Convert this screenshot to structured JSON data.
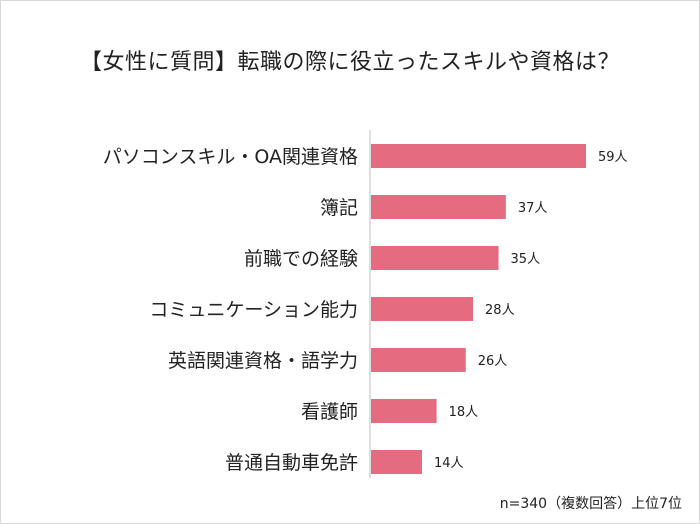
{
  "title": "【女性に質問】転職の際に役立ったスキルや資格は？",
  "note": "n=340（複数回答）上位7位",
  "colors": {
    "bar": "#e56c80",
    "axis": "#bfbfbf",
    "text": "#222222"
  },
  "chart_data": {
    "type": "bar",
    "orientation": "horizontal",
    "title": "【女性に質問】転職の際に役立ったスキルや資格は？",
    "categories": [
      "パソコンスキル・OA関連資格",
      "簿記",
      "前職での経験",
      "コミュニケーション能力",
      "英語関連資格・語学力",
      "看護師",
      "普通自動車免許"
    ],
    "values": [
      59,
      37,
      35,
      28,
      26,
      18,
      14
    ],
    "value_labels": [
      "59人",
      "37人",
      "35人",
      "28人",
      "26人",
      "18人",
      "14人"
    ],
    "xlim": [
      0,
      60
    ],
    "grid": false,
    "legend": "none"
  }
}
